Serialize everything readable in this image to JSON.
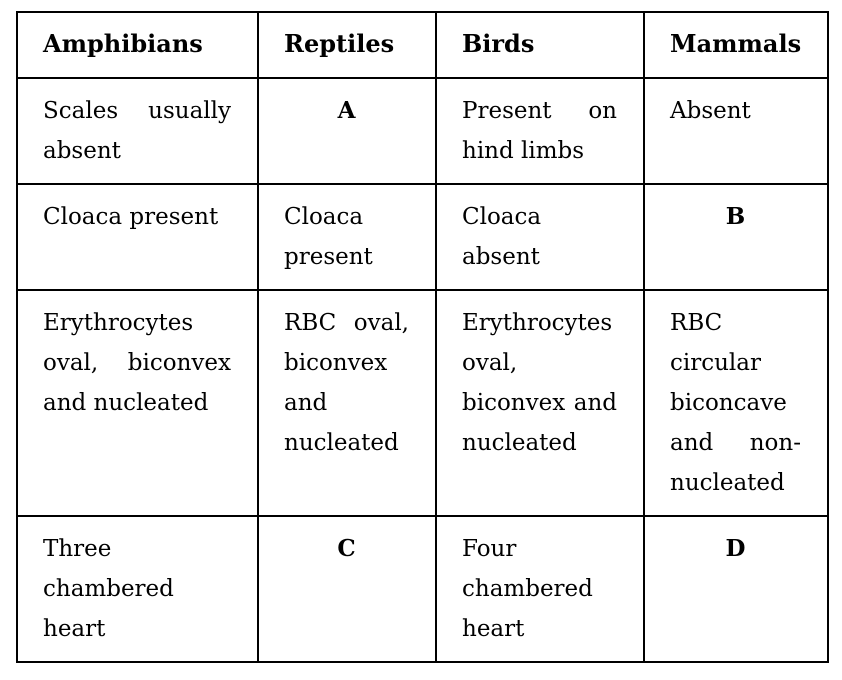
{
  "table": {
    "headers": [
      "Amphibians",
      "Reptiles",
      "Birds",
      "Mammals"
    ],
    "rows": [
      [
        "Scales usually absent",
        "A",
        "Present on hind limbs",
        "Absent"
      ],
      [
        "Cloaca present",
        "Cloaca present",
        "Cloaca absent",
        "B"
      ],
      [
        "Erythrocytes oval, biconvex and nucleated",
        "RBC oval, biconvex and nucleated",
        "Erythrocytes oval, biconvex and nucleated",
        "RBC circular biconcave and non-nucleated"
      ],
      [
        "Three chambered heart",
        "C",
        "Four chambered heart",
        "D"
      ]
    ]
  }
}
